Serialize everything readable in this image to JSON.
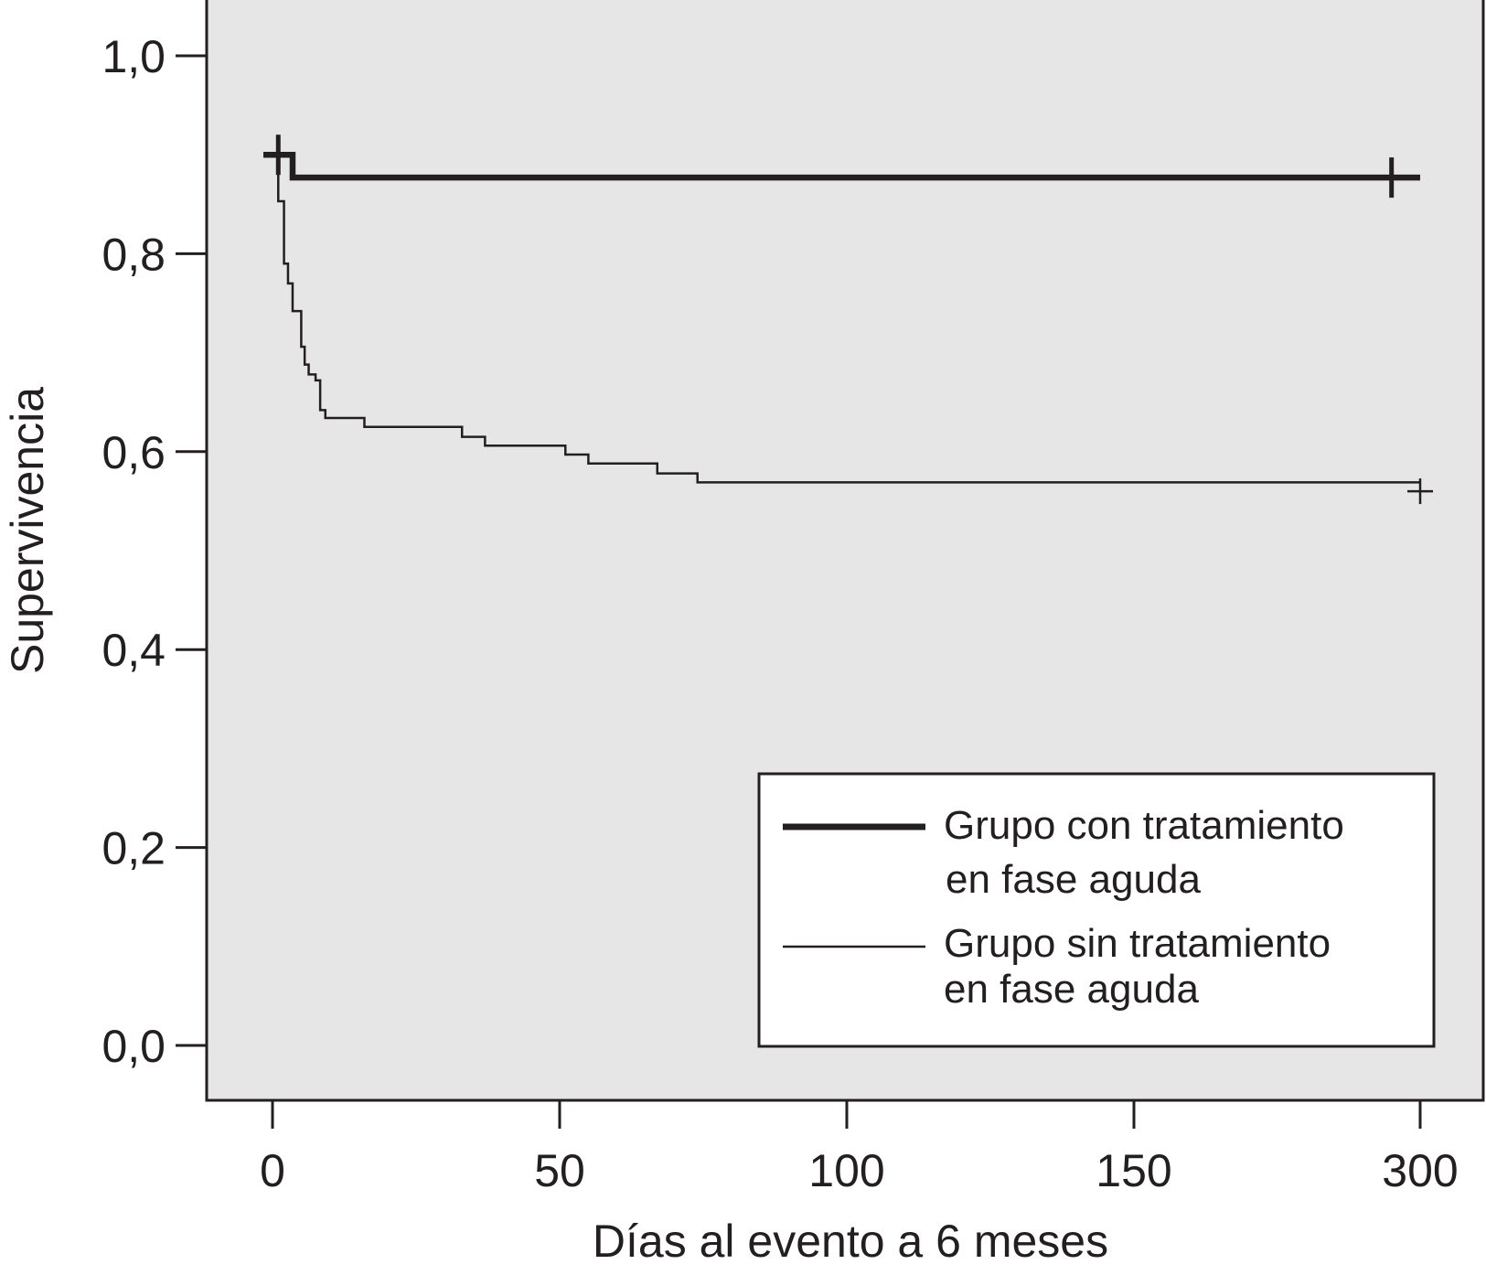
{
  "chart_data": {
    "type": "line",
    "subtype": "kaplan-meier step curves",
    "title": "",
    "xlabel": "Días al evento a 6 meses",
    "ylabel": "Supervivencia",
    "x_ticks": [
      "0",
      "50",
      "100",
      "150",
      "300"
    ],
    "y_ticks": [
      "1,0",
      "0,8",
      "0,6",
      "0,4",
      "0,2",
      "0,0"
    ],
    "ylim": [
      0,
      1
    ],
    "xlim": [
      0,
      180
    ],
    "grid": false,
    "legend_position": "bottom-right",
    "plot_background": "#e6e6e7",
    "line_color": "#231f20",
    "series": [
      {
        "name": "Grupo con tratamiento en fase aguda",
        "line_style": "thick",
        "steps": [
          [
            0,
            0.9
          ],
          [
            3.5,
            0.877
          ],
          [
            180,
            0.877
          ]
        ],
        "censor_marks": [
          [
            1,
            0.9
          ],
          [
            177,
            0.877
          ]
        ]
      },
      {
        "name": "Grupo sin tratamiento en fase aguda",
        "line_style": "thin",
        "steps": [
          [
            0,
            0.9
          ],
          [
            1,
            0.853
          ],
          [
            2,
            0.79
          ],
          [
            2.7,
            0.77
          ],
          [
            3.5,
            0.742
          ],
          [
            5,
            0.706
          ],
          [
            5.6,
            0.688
          ],
          [
            6.3,
            0.678
          ],
          [
            7.5,
            0.672
          ],
          [
            8.3,
            0.642
          ],
          [
            9.2,
            0.634
          ],
          [
            16,
            0.625
          ],
          [
            33,
            0.615
          ],
          [
            37,
            0.606
          ],
          [
            51,
            0.597
          ],
          [
            55,
            0.588
          ],
          [
            67,
            0.578
          ],
          [
            74,
            0.569
          ],
          [
            180,
            0.569
          ]
        ],
        "censor_marks": [
          [
            180,
            0.56
          ]
        ]
      }
    ],
    "legend": {
      "entries": [
        {
          "line1": "Grupo con tratamiento",
          "line2": "en fase aguda"
        },
        {
          "line1": "Grupo sin tratamiento",
          "line2": "en fase aguda"
        }
      ]
    }
  }
}
